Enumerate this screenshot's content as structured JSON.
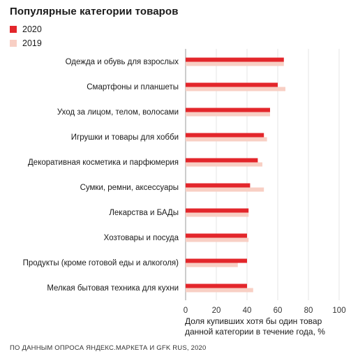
{
  "title": "Популярные категории товаров",
  "source": "ПО ДАННЫМ ОПРОСА ЯНДЕКС.МАРКЕТА И GFK RUS, 2020",
  "chart_data": {
    "type": "bar",
    "orientation": "horizontal",
    "title": "Популярные категории товаров",
    "xlabel_line1": "Доля купивших хотя бы один товар",
    "xlabel_line2": "данной категории в течение года, %",
    "xlim": [
      0,
      100
    ],
    "xticks": [
      "0",
      "20",
      "40",
      "60",
      "80",
      "100"
    ],
    "grid": "vertical",
    "legend_placement": "top-left",
    "categories": [
      "Одежда и обувь для взрослых",
      "Смартфоны и планшеты",
      "Уход за лицом, телом, волосами",
      "Игрушки и товары для хобби",
      "Декоративная косметика и парфюмерия",
      "Сумки, ремни, аксессуары",
      "Лекарства и БАДы",
      "Хозтовары и посуда",
      "Продукты (кроме готовой еды и алкоголя)",
      "Мелкая бытовая техника для кухни"
    ],
    "series": [
      {
        "name": "2020",
        "color": "#e3262b",
        "values": [
          64,
          60,
          55,
          51,
          47,
          42,
          41,
          40,
          40,
          40
        ]
      },
      {
        "name": "2019",
        "color": "#f8cfc4",
        "values": [
          64,
          65,
          55,
          53,
          50,
          51,
          41,
          41,
          34,
          44
        ]
      }
    ]
  }
}
